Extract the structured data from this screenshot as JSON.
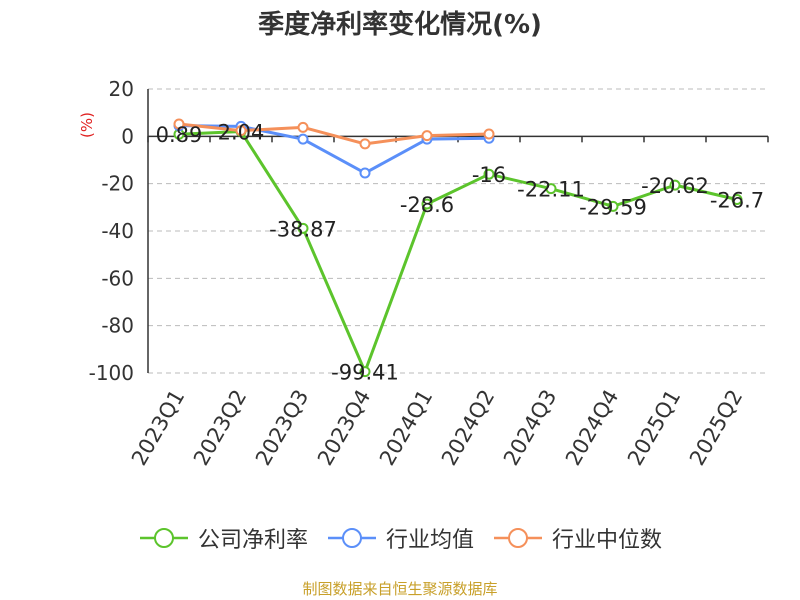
{
  "chart_data": {
    "type": "line",
    "title": "季度净利率变化情况(%)",
    "ylabel": "(%)",
    "categories": [
      "2023Q1",
      "2023Q2",
      "2023Q3",
      "2023Q4",
      "2024Q1",
      "2024Q2",
      "2024Q3",
      "2024Q4",
      "2025Q1",
      "2025Q2"
    ],
    "ylim": [
      -100,
      20
    ],
    "yticks": [
      20,
      0,
      -20,
      -40,
      -60,
      -80,
      -100
    ],
    "grid": true,
    "legend_position": "bottom",
    "series": [
      {
        "name": "公司净利率",
        "color": "#5cc42c",
        "values": [
          0.89,
          2.04,
          -38.87,
          -99.41,
          -28.6,
          -16,
          -22.11,
          -29.59,
          -20.62,
          -26.7
        ],
        "labels": [
          "0.89",
          "2.04",
          "-38.87",
          "-99.41",
          "-28.6",
          "-16",
          "-22.11",
          "-29.59",
          "-20.62",
          "-26.7"
        ]
      },
      {
        "name": "行业均值",
        "color": "#5b8ff9",
        "values": [
          4.5,
          4.2,
          -1.2,
          -15.5,
          -1.2,
          -0.8,
          null,
          null,
          null,
          null
        ]
      },
      {
        "name": "行业中位数",
        "color": "#f5905a",
        "values": [
          5.2,
          2.4,
          3.8,
          -3.2,
          0.3,
          1.0,
          null,
          null,
          null,
          null
        ]
      }
    ]
  },
  "source": "制图数据来自恒生聚源数据库"
}
